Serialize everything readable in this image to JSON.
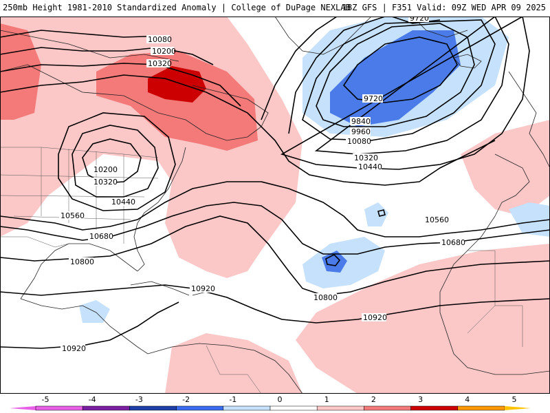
{
  "header": {
    "left": "250mb Height 1981-2010 Standardized Anomaly | College of DuPage NEXLAB",
    "right": "18Z GFS | F351 Valid: 09Z WED APR 09 2025"
  },
  "map": {
    "colors": {
      "pos1": "#fbc7c7",
      "pos2": "#f47a7a",
      "pos3": "#cc0000",
      "neg1": "#c6e1fb",
      "neg2": "#4a7be8",
      "coast": "#222222",
      "contour": "#000000"
    },
    "contour_labels": [
      "10080",
      "10200",
      "10320",
      "9720",
      "9720",
      "9840",
      "9960",
      "10080",
      "10320",
      "10440",
      "10200",
      "10320",
      "10440",
      "10560",
      "10680",
      "10800",
      "10560",
      "10680",
      "10920",
      "10800",
      "10920",
      "10920"
    ]
  },
  "colorbar": {
    "ticks": [
      "-5",
      "-4",
      "-3",
      "-2",
      "-1",
      "0",
      "1",
      "2",
      "3",
      "4",
      "5"
    ],
    "colors": [
      "#e65fe6",
      "#7a1fa0",
      "#1f3fa8",
      "#3a6cf0",
      "#c6e1fb",
      "#ffffff",
      "#fbc7c7",
      "#f47a7a",
      "#cc0000",
      "#ff9900"
    ]
  }
}
